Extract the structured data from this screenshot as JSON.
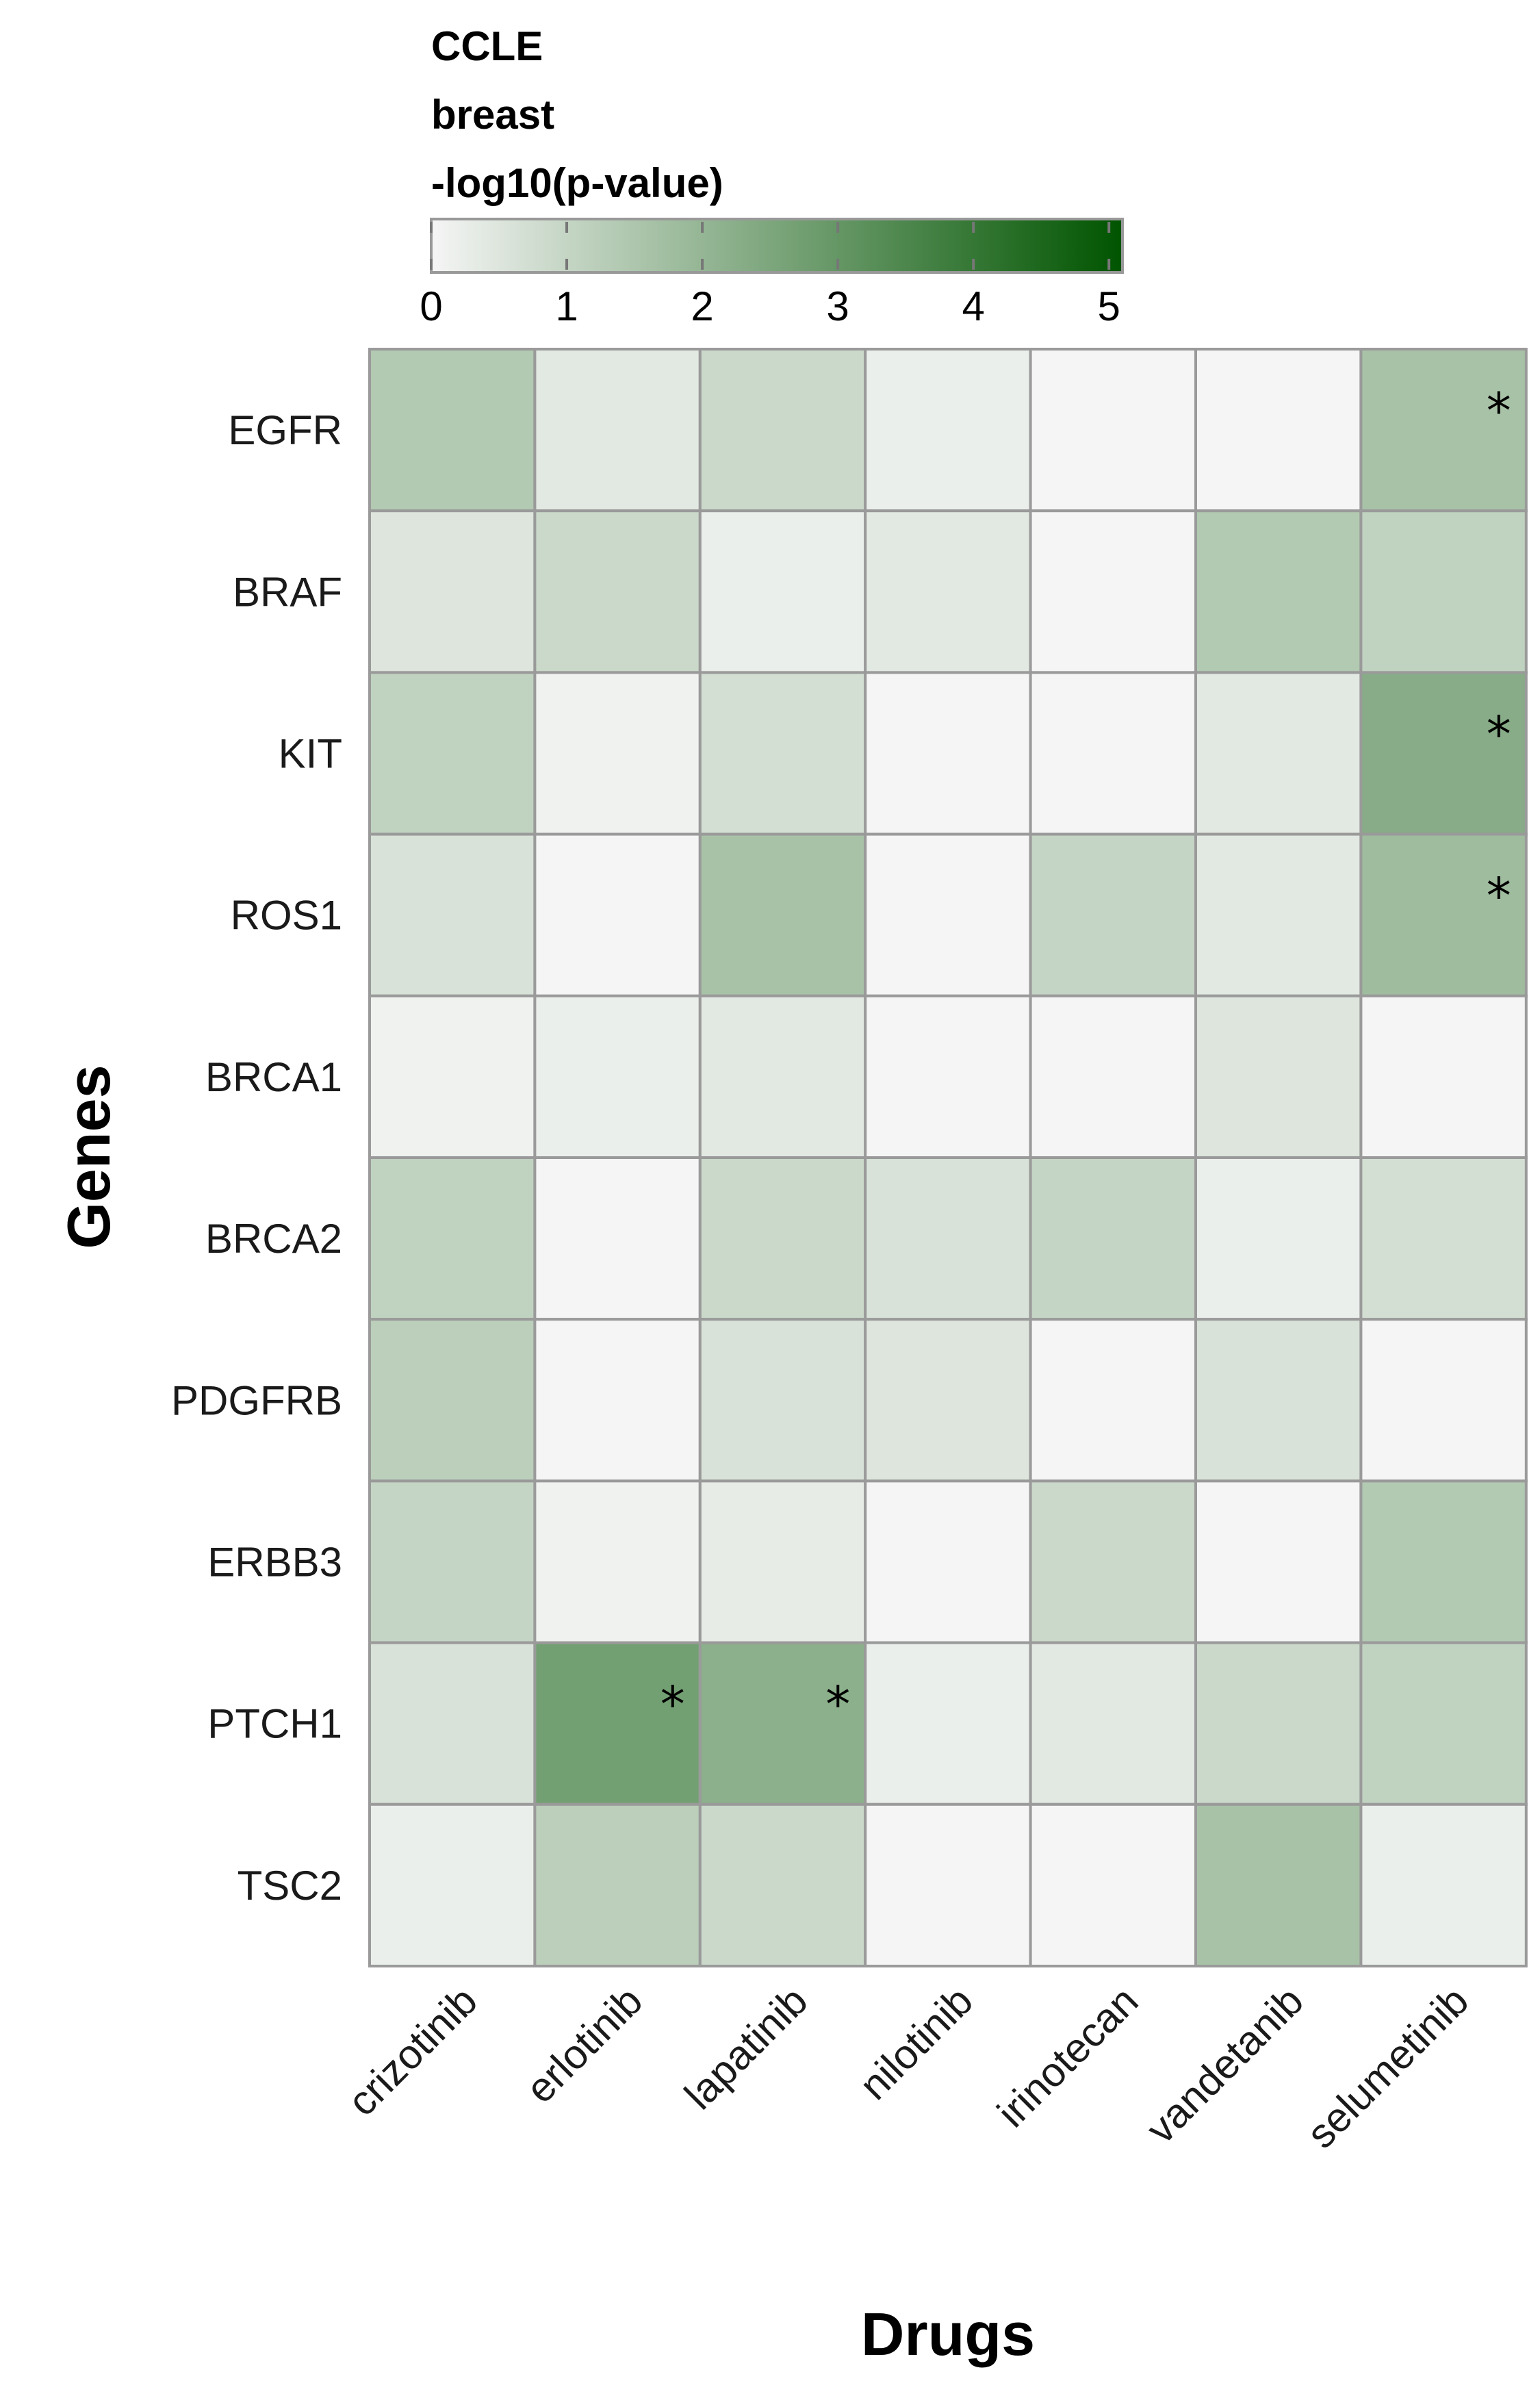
{
  "legend": {
    "title_lines": [
      "CCLE",
      "breast",
      "-log10(p-value)"
    ],
    "min": 0,
    "max": 5.1,
    "ticks": [
      "0",
      "1",
      "2",
      "3",
      "4",
      "5"
    ],
    "color_low": "#f5f5f5",
    "color_high": "#005400"
  },
  "chart_data": {
    "type": "heatmap",
    "xlabel": "Drugs",
    "ylabel": "Genes",
    "colorbar_label": "-log10(p-value)",
    "colorbar_range": [
      0,
      5.1
    ],
    "x_categories": [
      "crizotinib",
      "erlotinib",
      "lapatinib",
      "nilotinib",
      "irinotecan",
      "vandetanib",
      "selumetinib"
    ],
    "y_categories": [
      "EGFR",
      "BRAF",
      "KIT",
      "ROS1",
      "BRCA1",
      "BRCA2",
      "PDGFRB",
      "ERBB3",
      "PTCH1",
      "TSC2"
    ],
    "values": [
      [
        1.4,
        0.4,
        0.9,
        0.2,
        0.0,
        0.0,
        1.6
      ],
      [
        0.5,
        0.9,
        0.2,
        0.4,
        0.0,
        1.4,
        1.1
      ],
      [
        1.1,
        0.1,
        0.7,
        0.0,
        0.0,
        0.4,
        2.3
      ],
      [
        0.6,
        0.0,
        1.6,
        0.0,
        1.0,
        0.4,
        1.8
      ],
      [
        0.1,
        0.2,
        0.4,
        0.0,
        0.0,
        0.5,
        0.0
      ],
      [
        1.1,
        0.0,
        0.9,
        0.6,
        1.0,
        0.2,
        0.7
      ],
      [
        1.2,
        0.0,
        0.6,
        0.5,
        0.0,
        0.6,
        0.0
      ],
      [
        1.0,
        0.1,
        0.3,
        0.0,
        0.9,
        0.0,
        1.4
      ],
      [
        0.6,
        2.7,
        2.2,
        0.2,
        0.4,
        0.9,
        1.1
      ],
      [
        0.2,
        1.2,
        0.9,
        0.0,
        0.0,
        1.6,
        0.2
      ]
    ],
    "significance_marker": "*",
    "significant_cells": [
      [
        "EGFR",
        "selumetinib"
      ],
      [
        "KIT",
        "selumetinib"
      ],
      [
        "ROS1",
        "selumetinib"
      ],
      [
        "PTCH1",
        "erlotinib"
      ],
      [
        "PTCH1",
        "lapatinib"
      ]
    ]
  }
}
